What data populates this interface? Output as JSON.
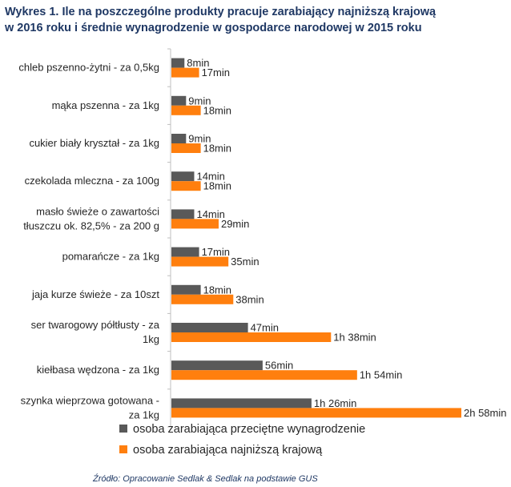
{
  "chart_data": {
    "type": "bar",
    "orientation": "horizontal",
    "title_lines": [
      "Wykres 1. Ile na poszczególne produkty pracuje zarabiający najniższą krajową",
      " w 2016 roku  i średnie wynagrodzenie w gospodarce narodowej w 2015 roku"
    ],
    "categories": [
      [
        "chleb pszenno-żytni - za 0,5kg"
      ],
      [
        "mąka pszenna - za 1kg"
      ],
      [
        "cukier biały kryształ - za 1kg"
      ],
      [
        "czekolada mleczna - za 100g"
      ],
      [
        "masło świeże o zawartości",
        "tłuszczu ok. 82,5% - za 200 g"
      ],
      [
        "pomarańcze - za 1kg"
      ],
      [
        "jaja kurze świeże - za 10szt"
      ],
      [
        "ser twarogowy półtłusty - za",
        "1kg"
      ],
      [
        "kiełbasa wędzona - za 1kg"
      ],
      [
        "szynka wieprzowa gotowana -",
        "za 1kg"
      ]
    ],
    "series": [
      {
        "name": "osoba zarabiająca przeciętne wynagrodzenie",
        "color": "#595959",
        "values": [
          8,
          9,
          9,
          14,
          14,
          17,
          18,
          47,
          56,
          86
        ],
        "labels": [
          "8min",
          "9min",
          "9min",
          "14min",
          "14min",
          "17min",
          "18min",
          "47min",
          "56min",
          "1h 26min"
        ]
      },
      {
        "name": "osoba zarabiająca najniższą krajową",
        "color": "#ff7f0e",
        "values": [
          17,
          18,
          18,
          18,
          29,
          35,
          38,
          98,
          114,
          178
        ],
        "labels": [
          "17min",
          "18min",
          "18min",
          "18min",
          "29min",
          "35min",
          "38min",
          "1h 38min",
          "1h 54min",
          "2h 58min"
        ]
      }
    ],
    "unit": "min",
    "xlim": [
      0,
      178
    ],
    "grid": false,
    "legend_position": "bottom",
    "source": "Źródło: Opracowanie Sedlak & Sedlak na podstawie GUS"
  }
}
